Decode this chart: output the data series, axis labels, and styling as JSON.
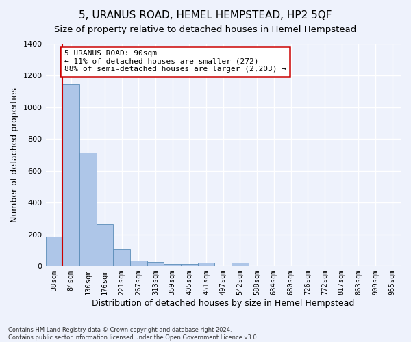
{
  "title": "5, URANUS ROAD, HEMEL HEMPSTEAD, HP2 5QF",
  "subtitle": "Size of property relative to detached houses in Hemel Hempstead",
  "xlabel": "Distribution of detached houses by size in Hemel Hempstead",
  "ylabel": "Number of detached properties",
  "footnote1": "Contains HM Land Registry data © Crown copyright and database right 2024.",
  "footnote2": "Contains public sector information licensed under the Open Government Licence v3.0.",
  "bin_labels": [
    "38sqm",
    "84sqm",
    "130sqm",
    "176sqm",
    "221sqm",
    "267sqm",
    "313sqm",
    "359sqm",
    "405sqm",
    "451sqm",
    "497sqm",
    "542sqm",
    "588sqm",
    "634sqm",
    "680sqm",
    "726sqm",
    "772sqm",
    "817sqm",
    "863sqm",
    "909sqm",
    "955sqm"
  ],
  "bar_heights": [
    185,
    1145,
    715,
    265,
    108,
    35,
    28,
    15,
    12,
    20,
    0,
    20,
    0,
    0,
    0,
    0,
    0,
    0,
    0,
    0,
    0
  ],
  "bar_color": "#aec6e8",
  "bar_edge_color": "#5b8db8",
  "property_line_color": "#cc0000",
  "annotation_text": "5 URANUS ROAD: 90sqm\n← 11% of detached houses are smaller (272)\n88% of semi-detached houses are larger (2,203) →",
  "annotation_box_color": "#cc0000",
  "ylim": [
    0,
    1400
  ],
  "yticks": [
    0,
    200,
    400,
    600,
    800,
    1000,
    1200,
    1400
  ],
  "background_color": "#eef2fc",
  "grid_color": "#ffffff",
  "title_fontsize": 11,
  "subtitle_fontsize": 9.5,
  "xlabel_fontsize": 9,
  "ylabel_fontsize": 9,
  "tick_fontsize": 7.5,
  "annotation_fontsize": 8
}
